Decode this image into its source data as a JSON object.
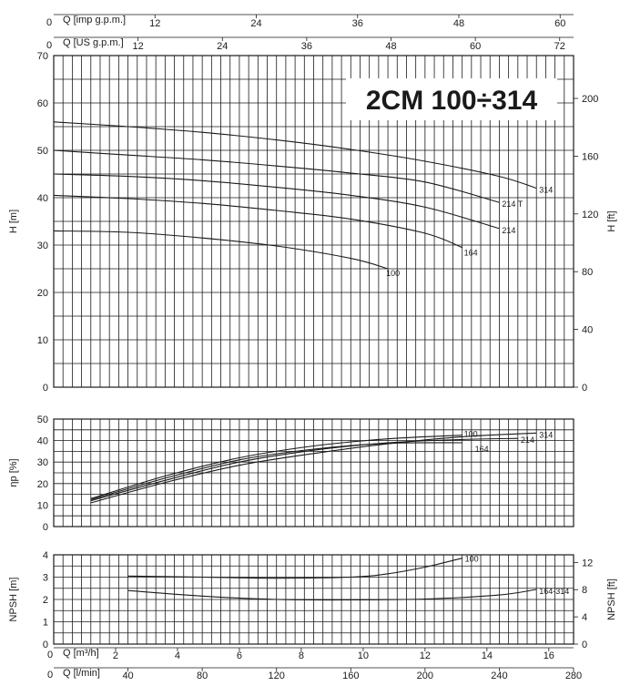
{
  "chart_data": [
    {
      "type": "line",
      "title": "2CM 100÷314",
      "ylabel": "H [m]",
      "ylabel_right": "H [ft]",
      "ylim": [
        0,
        70
      ],
      "yticks": [
        0,
        10,
        20,
        30,
        40,
        50,
        60,
        70
      ],
      "ylim_right": [
        0,
        229.66
      ],
      "yticks_right": [
        0,
        40,
        80,
        120,
        160,
        200
      ],
      "xlim": [
        0,
        280
      ],
      "top_axes": [
        {
          "label": "Q [imp g.p.m.]",
          "zero": "0",
          "ticks": [
            12,
            24,
            36,
            48,
            60
          ],
          "lpm_per_unit": 4.546
        },
        {
          "label": "Q [US g.p.m.]",
          "zero": "0",
          "ticks": [
            12,
            24,
            36,
            48,
            60,
            72
          ],
          "lpm_per_unit": 3.785
        }
      ],
      "series": [
        {
          "name": "314",
          "x": [
            0,
            40,
            80,
            120,
            160,
            200,
            240,
            260
          ],
          "y": [
            56,
            55,
            53.8,
            52.2,
            50.2,
            47.7,
            44.5,
            42
          ]
        },
        {
          "name": "214 T",
          "x": [
            0,
            40,
            80,
            120,
            160,
            200,
            240
          ],
          "y": [
            50,
            49,
            48,
            46.7,
            45.2,
            43.3,
            39
          ]
        },
        {
          "name": "214",
          "x": [
            0,
            40,
            80,
            120,
            160,
            200,
            240
          ],
          "y": [
            45,
            44.5,
            43.6,
            42.2,
            40.5,
            38,
            33.5
          ]
        },
        {
          "name": "164",
          "x": [
            0,
            40,
            80,
            120,
            160,
            200,
            220
          ],
          "y": [
            40.5,
            39.8,
            38.8,
            37.3,
            35.5,
            32.5,
            29.5
          ]
        },
        {
          "name": "100",
          "x": [
            0,
            40,
            80,
            120,
            160,
            180
          ],
          "y": [
            33,
            32.7,
            31.5,
            29.8,
            27.2,
            25
          ]
        }
      ]
    },
    {
      "type": "line",
      "ylabel": "ηp [%]",
      "ylim": [
        0,
        50
      ],
      "yticks": [
        0,
        10,
        20,
        30,
        40,
        50
      ],
      "xlim": [
        0,
        280
      ],
      "series": [
        {
          "name": "100",
          "x": [
            20,
            60,
            100,
            140,
            180,
            220
          ],
          "y": [
            13,
            23.5,
            32,
            37.5,
            40.8,
            42.5
          ]
        },
        {
          "name": "314",
          "x": [
            20,
            60,
            100,
            140,
            180,
            220,
            260
          ],
          "y": [
            11,
            20.5,
            28.5,
            34,
            38.5,
            41.8,
            43.5
          ]
        },
        {
          "name": "214",
          "x": [
            20,
            60,
            100,
            140,
            180,
            220,
            250
          ],
          "y": [
            12,
            21.5,
            30,
            35.5,
            39,
            40.5,
            41
          ]
        },
        {
          "name": "164",
          "x": [
            20,
            60,
            100,
            140,
            180,
            220
          ],
          "y": [
            12.5,
            22.5,
            31,
            36,
            38.7,
            39
          ]
        }
      ]
    },
    {
      "type": "line",
      "ylabel": "NPSH [m]",
      "ylabel_right": "NPSH [ft]",
      "ylim": [
        0,
        4
      ],
      "yticks": [
        0,
        1,
        2,
        3,
        4
      ],
      "ylim_right": [
        0,
        13.12
      ],
      "yticks_right": [
        0,
        4,
        8,
        12
      ],
      "xlim": [
        0,
        280
      ],
      "series": [
        {
          "name": "100",
          "x": [
            40,
            80,
            120,
            160,
            180,
            200,
            220
          ],
          "y": [
            3.05,
            3.0,
            2.95,
            3.0,
            3.15,
            3.45,
            3.85
          ]
        },
        {
          "name": "164-314",
          "x": [
            40,
            80,
            120,
            160,
            200,
            240,
            260
          ],
          "y": [
            2.4,
            2.15,
            2.0,
            1.98,
            2.02,
            2.2,
            2.45
          ]
        }
      ],
      "bottom_axes": [
        {
          "label": "Q [m³/h]",
          "zero": "0",
          "ticks": [
            2,
            4,
            6,
            8,
            10,
            12,
            14,
            16
          ],
          "lpm_per_unit": 16.667
        },
        {
          "label": "Q [l/min]",
          "zero": "0",
          "ticks": [
            40,
            80,
            120,
            160,
            200,
            240,
            280
          ],
          "lpm_per_unit": 1
        }
      ]
    }
  ]
}
